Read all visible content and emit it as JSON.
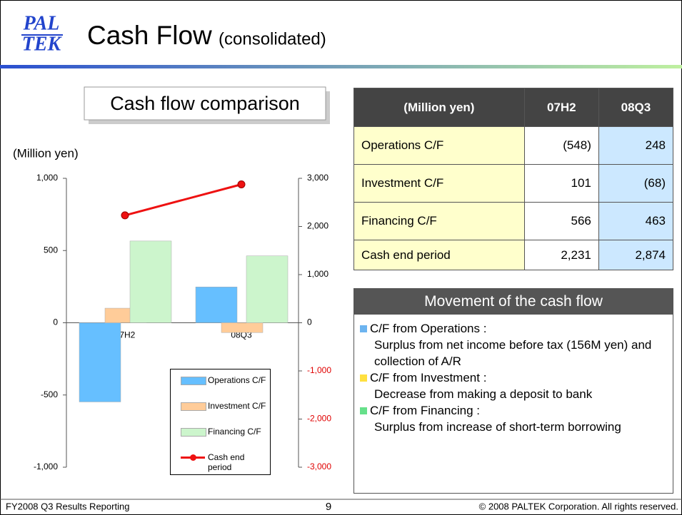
{
  "header": {
    "logo_top": "PAL",
    "logo_bottom": "TEK",
    "title": "Cash Flow",
    "subtitle": "(consolidated)"
  },
  "chart_data": {
    "type": "bar",
    "title": "Cash flow comparison",
    "y_label": "(Million yen)",
    "categories": [
      "07H2",
      "08Q3"
    ],
    "series": [
      {
        "name": "Operations C/F",
        "color": "#66bfff",
        "values": [
          -548,
          248
        ]
      },
      {
        "name": "Investment C/F",
        "color": "#ffcc99",
        "values": [
          101,
          -68
        ]
      },
      {
        "name": "Financing C/F",
        "color": "#ccf5cc",
        "values": [
          566,
          463
        ]
      },
      {
        "name": "Cash end period",
        "color": "#ee1111",
        "type": "line",
        "axis": "y2",
        "values": [
          2231,
          2874
        ]
      }
    ],
    "ylim": [
      -1000,
      1000
    ],
    "yticks": [
      {
        "value": -1000,
        "label": "-1,000"
      },
      -500,
      0,
      500,
      {
        "value": 1000,
        "label": "1,000"
      }
    ],
    "y2lim": [
      -3000,
      3000
    ],
    "y2ticks": [
      {
        "value": -3000,
        "label": "-3,000"
      },
      {
        "value": -2000,
        "label": "-2,000"
      },
      {
        "value": -1000,
        "label": "-1,000"
      },
      0,
      {
        "value": 1000,
        "label": "1,000"
      },
      {
        "value": 2000,
        "label": "2,000"
      },
      {
        "value": 3000,
        "label": "3,000"
      }
    ],
    "y2_negative_color": "#e00000",
    "grid": false
  },
  "table": {
    "header": [
      "(Million yen)",
      "07H2",
      "08Q3"
    ],
    "rows": [
      [
        "Operations C/F",
        "(548)",
        "248"
      ],
      [
        "Investment C/F",
        "101",
        "(68)"
      ],
      [
        "Financing C/F",
        "566",
        "463"
      ],
      [
        "Cash end period",
        "2,231",
        "2,874"
      ]
    ]
  },
  "movement": {
    "title": "Movement of the cash flow",
    "items": [
      {
        "heading": "C/F from Operations :",
        "text": "Surplus from net income before tax (156M yen) and collection of A/R",
        "color": "#6cb4f0"
      },
      {
        "heading": "C/F from Investment :",
        "text": "Decrease from making a deposit to bank",
        "color": "#ffe040"
      },
      {
        "heading": "C/F from Financing :",
        "text": "Surplus from increase of short-term borrowing",
        "color": "#66e08a"
      }
    ]
  },
  "footer": {
    "left": "FY2008 Q3 Results Reporting",
    "page": "9",
    "right": "© 2008 PALTEK Corporation. All rights reserved."
  }
}
